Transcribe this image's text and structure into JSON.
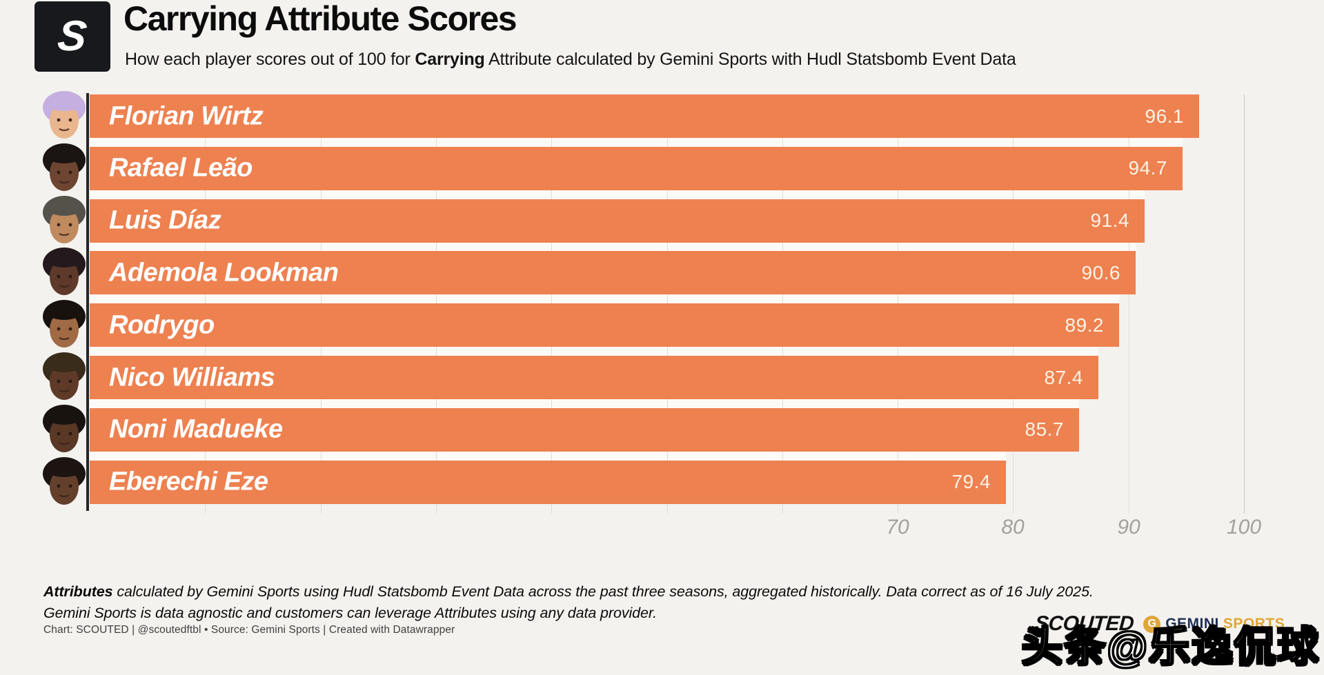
{
  "header": {
    "logo_letter": "S",
    "title": "Carrying Attribute Scores",
    "subtitle_prefix": "How each player scores out of 100 for ",
    "subtitle_bold": "Carrying",
    "subtitle_suffix": " Attribute calculated by Gemini Sports with Hudl Statsbomb Event Data"
  },
  "chart_data": {
    "type": "bar",
    "orientation": "horizontal",
    "title": "Carrying Attribute Scores",
    "subtitle": "How each player scores out of 100 for Carrying Attribute calculated by Gemini Sports with Hudl Statsbomb Event Data",
    "categories": [
      "Florian Wirtz",
      "Rafael Leão",
      "Luis Díaz",
      "Ademola Lookman",
      "Rodrygo",
      "Nico Williams",
      "Noni Madueke",
      "Eberechi Eze"
    ],
    "values": [
      96.1,
      94.7,
      91.4,
      90.6,
      89.2,
      87.4,
      85.7,
      79.4
    ],
    "xlim": [
      0,
      105
    ],
    "axis_ticks_labeled": [
      "70",
      "80",
      "90",
      "100"
    ],
    "gridline_step": 10,
    "grid": "on",
    "legend": "none",
    "bar_color": "#ee8150",
    "name_label_color": "#ffffff",
    "value_label_color": "#fdf3e6"
  },
  "players": [
    {
      "name": "Florian Wirtz",
      "value": "96.1",
      "skin": "#e9b68e",
      "hair": "#c5a express06a"
    },
    {
      "name": "Rafael Leão",
      "value": "94.7",
      "skin": "#6d4530",
      "hair": "#1a1412"
    },
    {
      "name": "Luis Díaz",
      "value": "91.4",
      "skin": "#c08a5f",
      "hair": "#55524c"
    },
    {
      "name": "Ademola Lookman",
      "value": "90.6",
      "skin": "#5f3a2a",
      "hair": "#241a1e"
    },
    {
      "name": "Rodrygo",
      "value": "89.2",
      "skin": "#a06a45",
      "hair": "#17120e"
    },
    {
      "name": "Nico Williams",
      "value": "87.4",
      "skin": "#5f3a28",
      "hair": "#3a2c1a"
    },
    {
      "name": "Noni Madueke",
      "value": "85.7",
      "skin": "#5a3826",
      "hair": "#191310"
    },
    {
      "name": "Eberechi Eze",
      "value": "79.4",
      "skin": "#64402c",
      "hair": "#1c1410"
    }
  ],
  "notes": {
    "bold": "Attributes",
    "line1_rest": " calculated by Gemini Sports using Hudl Statsbomb Event Data across the past three seasons, aggregated historically. Data correct as of 16 July 2025.",
    "line2": "Gemini Sports is data agnostic and customers can leverage Attributes using any data provider."
  },
  "credit": "Chart: SCOUTED | @scoutedftbl • Source: Gemini Sports | Created with Datawrapper",
  "logos": {
    "scouted": "SCOUTED",
    "gemini_g": "G",
    "gemini_word": "GEMINI",
    "sports_word": "SPORTS"
  },
  "watermark": "头条@乐逸侃球",
  "colors": {
    "background": "#f3f2ee",
    "bar": "#ee8150",
    "axis_line": "#26262a",
    "gemini_navy": "#203055",
    "gemini_gold": "#dfa63a",
    "tick_text": "#a3a19c"
  }
}
